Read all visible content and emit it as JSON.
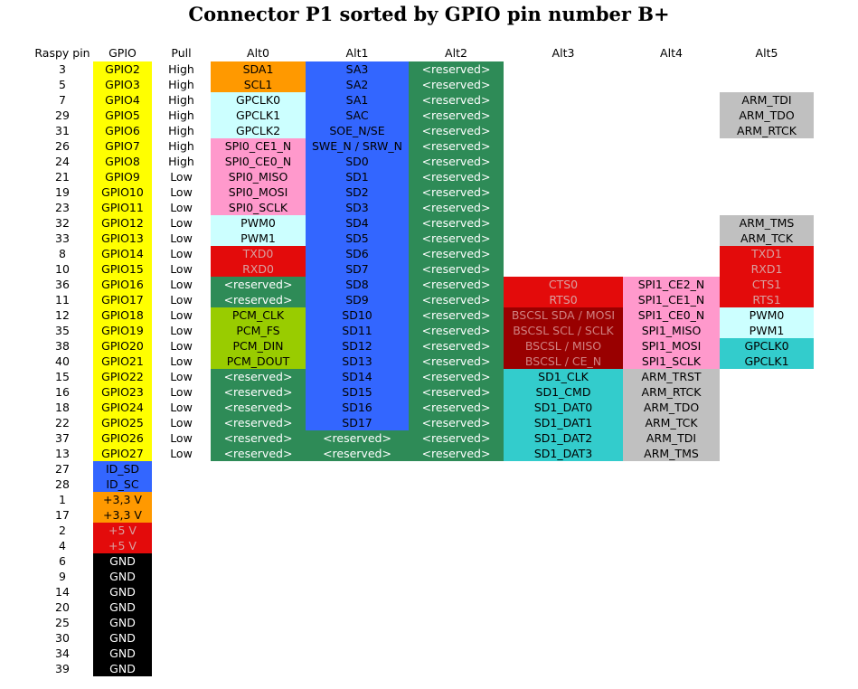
{
  "title": "Connector P1 sorted by GPIO pin number B+",
  "columns": [
    {
      "label": "Raspy pin"
    },
    {
      "label": "GPIO"
    },
    {
      "label": "Pull"
    },
    {
      "label": "Alt0"
    },
    {
      "label": "Alt1"
    },
    {
      "label": "Alt2"
    },
    {
      "label": "Alt3"
    },
    {
      "label": "Alt4"
    },
    {
      "label": "Alt5"
    }
  ],
  "palette": {
    "yellow": {
      "bg": "#FFFF00",
      "fg": "#000000"
    },
    "orange": {
      "bg": "#FF9900",
      "fg": "#000000"
    },
    "blue": {
      "bg": "#3366FF",
      "fg": "#000000"
    },
    "green": {
      "bg": "#2E8B57",
      "fg": "#FFFFFF"
    },
    "lightcyan": {
      "bg": "#CCFFFF",
      "fg": "#000000"
    },
    "pink": {
      "bg": "#FF99CC",
      "fg": "#000000"
    },
    "red": {
      "bg": "#E30B0B",
      "fg": "#D9A0A0"
    },
    "darkred": {
      "bg": "#990000",
      "fg": "#D08080"
    },
    "olive": {
      "bg": "#99CC00",
      "fg": "#000000"
    },
    "teal": {
      "bg": "#33CCCC",
      "fg": "#000000"
    },
    "gray": {
      "bg": "#C0C0C0",
      "fg": "#000000"
    },
    "black": {
      "bg": "#000000",
      "fg": "#FFFFFF"
    },
    "redbright": {
      "bg": "#E30B0B",
      "fg": "#FFFFFF"
    }
  },
  "rows": [
    {
      "pin": "3",
      "gpio": {
        "t": "GPIO2",
        "c": "yellow"
      },
      "pull": "High",
      "alt": [
        {
          "t": "SDA1",
          "c": "orange"
        },
        {
          "t": "SA3",
          "c": "blue"
        },
        {
          "t": "<reserved>",
          "c": "green"
        },
        null,
        null,
        null
      ]
    },
    {
      "pin": "5",
      "gpio": {
        "t": "GPIO3",
        "c": "yellow"
      },
      "pull": "High",
      "alt": [
        {
          "t": "SCL1",
          "c": "orange"
        },
        {
          "t": "SA2",
          "c": "blue"
        },
        {
          "t": "<reserved>",
          "c": "green"
        },
        null,
        null,
        null
      ]
    },
    {
      "pin": "7",
      "gpio": {
        "t": "GPIO4",
        "c": "yellow"
      },
      "pull": "High",
      "alt": [
        {
          "t": "GPCLK0",
          "c": "lightcyan"
        },
        {
          "t": "SA1",
          "c": "blue"
        },
        {
          "t": "<reserved>",
          "c": "green"
        },
        null,
        null,
        {
          "t": "ARM_TDI",
          "c": "gray"
        }
      ]
    },
    {
      "pin": "29",
      "gpio": {
        "t": "GPIO5",
        "c": "yellow"
      },
      "pull": "High",
      "alt": [
        {
          "t": "GPCLK1",
          "c": "lightcyan"
        },
        {
          "t": "SAC",
          "c": "blue"
        },
        {
          "t": "<reserved>",
          "c": "green"
        },
        null,
        null,
        {
          "t": "ARM_TDO",
          "c": "gray"
        }
      ]
    },
    {
      "pin": "31",
      "gpio": {
        "t": "GPIO6",
        "c": "yellow"
      },
      "pull": "High",
      "alt": [
        {
          "t": "GPCLK2",
          "c": "lightcyan"
        },
        {
          "t": "SOE_N/SE",
          "c": "blue"
        },
        {
          "t": "<reserved>",
          "c": "green"
        },
        null,
        null,
        {
          "t": "ARM_RTCK",
          "c": "gray"
        }
      ]
    },
    {
      "pin": "26",
      "gpio": {
        "t": "GPIO7",
        "c": "yellow"
      },
      "pull": "High",
      "alt": [
        {
          "t": "SPI0_CE1_N",
          "c": "pink"
        },
        {
          "t": "SWE_N / SRW_N",
          "c": "blue"
        },
        {
          "t": "<reserved>",
          "c": "green"
        },
        null,
        null,
        null
      ]
    },
    {
      "pin": "24",
      "gpio": {
        "t": "GPIO8",
        "c": "yellow"
      },
      "pull": "High",
      "alt": [
        {
          "t": "SPI0_CE0_N",
          "c": "pink"
        },
        {
          "t": "SD0",
          "c": "blue"
        },
        {
          "t": "<reserved>",
          "c": "green"
        },
        null,
        null,
        null
      ]
    },
    {
      "pin": "21",
      "gpio": {
        "t": "GPIO9",
        "c": "yellow"
      },
      "pull": "Low",
      "alt": [
        {
          "t": "SPI0_MISO",
          "c": "pink"
        },
        {
          "t": "SD1",
          "c": "blue"
        },
        {
          "t": "<reserved>",
          "c": "green"
        },
        null,
        null,
        null
      ]
    },
    {
      "pin": "19",
      "gpio": {
        "t": "GPIO10",
        "c": "yellow"
      },
      "pull": "Low",
      "alt": [
        {
          "t": "SPI0_MOSI",
          "c": "pink"
        },
        {
          "t": "SD2",
          "c": "blue"
        },
        {
          "t": "<reserved>",
          "c": "green"
        },
        null,
        null,
        null
      ]
    },
    {
      "pin": "23",
      "gpio": {
        "t": "GPIO11",
        "c": "yellow"
      },
      "pull": "Low",
      "alt": [
        {
          "t": "SPI0_SCLK",
          "c": "pink"
        },
        {
          "t": "SD3",
          "c": "blue"
        },
        {
          "t": "<reserved>",
          "c": "green"
        },
        null,
        null,
        null
      ]
    },
    {
      "pin": "32",
      "gpio": {
        "t": "GPIO12",
        "c": "yellow"
      },
      "pull": "Low",
      "alt": [
        {
          "t": "PWM0",
          "c": "lightcyan"
        },
        {
          "t": "SD4",
          "c": "blue"
        },
        {
          "t": "<reserved>",
          "c": "green"
        },
        null,
        null,
        {
          "t": "ARM_TMS",
          "c": "gray"
        }
      ]
    },
    {
      "pin": "33",
      "gpio": {
        "t": "GPIO13",
        "c": "yellow"
      },
      "pull": "Low",
      "alt": [
        {
          "t": "PWM1",
          "c": "lightcyan"
        },
        {
          "t": "SD5",
          "c": "blue"
        },
        {
          "t": "<reserved>",
          "c": "green"
        },
        null,
        null,
        {
          "t": "ARM_TCK",
          "c": "gray"
        }
      ]
    },
    {
      "pin": "8",
      "gpio": {
        "t": "GPIO14",
        "c": "yellow"
      },
      "pull": "Low",
      "alt": [
        {
          "t": "TXD0",
          "c": "red"
        },
        {
          "t": "SD6",
          "c": "blue"
        },
        {
          "t": "<reserved>",
          "c": "green"
        },
        null,
        null,
        {
          "t": "TXD1",
          "c": "red"
        }
      ]
    },
    {
      "pin": "10",
      "gpio": {
        "t": "GPIO15",
        "c": "yellow"
      },
      "pull": "Low",
      "alt": [
        {
          "t": "RXD0",
          "c": "red"
        },
        {
          "t": "SD7",
          "c": "blue"
        },
        {
          "t": "<reserved>",
          "c": "green"
        },
        null,
        null,
        {
          "t": "RXD1",
          "c": "red"
        }
      ]
    },
    {
      "pin": "36",
      "gpio": {
        "t": "GPIO16",
        "c": "yellow"
      },
      "pull": "Low",
      "alt": [
        {
          "t": "<reserved>",
          "c": "green"
        },
        {
          "t": "SD8",
          "c": "blue"
        },
        {
          "t": "<reserved>",
          "c": "green"
        },
        {
          "t": "CTS0",
          "c": "red"
        },
        {
          "t": "SPI1_CE2_N",
          "c": "pink"
        },
        {
          "t": "CTS1",
          "c": "red"
        }
      ]
    },
    {
      "pin": "11",
      "gpio": {
        "t": "GPIO17",
        "c": "yellow"
      },
      "pull": "Low",
      "alt": [
        {
          "t": "<reserved>",
          "c": "green"
        },
        {
          "t": "SD9",
          "c": "blue"
        },
        {
          "t": "<reserved>",
          "c": "green"
        },
        {
          "t": "RTS0",
          "c": "red"
        },
        {
          "t": "SPI1_CE1_N",
          "c": "pink"
        },
        {
          "t": "RTS1",
          "c": "red"
        }
      ]
    },
    {
      "pin": "12",
      "gpio": {
        "t": "GPIO18",
        "c": "yellow"
      },
      "pull": "Low",
      "alt": [
        {
          "t": "PCM_CLK",
          "c": "olive"
        },
        {
          "t": "SD10",
          "c": "blue"
        },
        {
          "t": "<reserved>",
          "c": "green"
        },
        {
          "t": "BSCSL SDA / MOSI",
          "c": "darkred"
        },
        {
          "t": "SPI1_CE0_N",
          "c": "pink"
        },
        {
          "t": "PWM0",
          "c": "lightcyan"
        }
      ]
    },
    {
      "pin": "35",
      "gpio": {
        "t": "GPIO19",
        "c": "yellow"
      },
      "pull": "Low",
      "alt": [
        {
          "t": "PCM_FS",
          "c": "olive"
        },
        {
          "t": "SD11",
          "c": "blue"
        },
        {
          "t": "<reserved>",
          "c": "green"
        },
        {
          "t": "BSCSL SCL / SCLK",
          "c": "darkred"
        },
        {
          "t": "SPI1_MISO",
          "c": "pink"
        },
        {
          "t": "PWM1",
          "c": "lightcyan"
        }
      ]
    },
    {
      "pin": "38",
      "gpio": {
        "t": "GPIO20",
        "c": "yellow"
      },
      "pull": "Low",
      "alt": [
        {
          "t": "PCM_DIN",
          "c": "olive"
        },
        {
          "t": "SD12",
          "c": "blue"
        },
        {
          "t": "<reserved>",
          "c": "green"
        },
        {
          "t": "BSCSL / MISO",
          "c": "darkred"
        },
        {
          "t": "SPI1_MOSI",
          "c": "pink"
        },
        {
          "t": "GPCLK0",
          "c": "teal"
        }
      ]
    },
    {
      "pin": "40",
      "gpio": {
        "t": "GPIO21",
        "c": "yellow"
      },
      "pull": "Low",
      "alt": [
        {
          "t": "PCM_DOUT",
          "c": "olive"
        },
        {
          "t": "SD13",
          "c": "blue"
        },
        {
          "t": "<reserved>",
          "c": "green"
        },
        {
          "t": "BSCSL / CE_N",
          "c": "darkred"
        },
        {
          "t": "SPI1_SCLK",
          "c": "pink"
        },
        {
          "t": "GPCLK1",
          "c": "teal"
        }
      ]
    },
    {
      "pin": "15",
      "gpio": {
        "t": "GPIO22",
        "c": "yellow"
      },
      "pull": "Low",
      "alt": [
        {
          "t": "<reserved>",
          "c": "green"
        },
        {
          "t": "SD14",
          "c": "blue"
        },
        {
          "t": "<reserved>",
          "c": "green"
        },
        {
          "t": "SD1_CLK",
          "c": "teal"
        },
        {
          "t": "ARM_TRST",
          "c": "gray"
        },
        null
      ]
    },
    {
      "pin": "16",
      "gpio": {
        "t": "GPIO23",
        "c": "yellow"
      },
      "pull": "Low",
      "alt": [
        {
          "t": "<reserved>",
          "c": "green"
        },
        {
          "t": "SD15",
          "c": "blue"
        },
        {
          "t": "<reserved>",
          "c": "green"
        },
        {
          "t": "SD1_CMD",
          "c": "teal"
        },
        {
          "t": "ARM_RTCK",
          "c": "gray"
        },
        null
      ]
    },
    {
      "pin": "18",
      "gpio": {
        "t": "GPIO24",
        "c": "yellow"
      },
      "pull": "Low",
      "alt": [
        {
          "t": "<reserved>",
          "c": "green"
        },
        {
          "t": "SD16",
          "c": "blue"
        },
        {
          "t": "<reserved>",
          "c": "green"
        },
        {
          "t": "SD1_DAT0",
          "c": "teal"
        },
        {
          "t": "ARM_TDO",
          "c": "gray"
        },
        null
      ]
    },
    {
      "pin": "22",
      "gpio": {
        "t": "GPIO25",
        "c": "yellow"
      },
      "pull": "Low",
      "alt": [
        {
          "t": "<reserved>",
          "c": "green"
        },
        {
          "t": "SD17",
          "c": "blue"
        },
        {
          "t": "<reserved>",
          "c": "green"
        },
        {
          "t": "SD1_DAT1",
          "c": "teal"
        },
        {
          "t": "ARM_TCK",
          "c": "gray"
        },
        null
      ]
    },
    {
      "pin": "37",
      "gpio": {
        "t": "GPIO26",
        "c": "yellow"
      },
      "pull": "Low",
      "alt": [
        {
          "t": "<reserved>",
          "c": "green"
        },
        {
          "t": "<reserved>",
          "c": "green"
        },
        {
          "t": "<reserved>",
          "c": "green"
        },
        {
          "t": "SD1_DAT2",
          "c": "teal"
        },
        {
          "t": "ARM_TDI",
          "c": "gray"
        },
        null
      ]
    },
    {
      "pin": "13",
      "gpio": {
        "t": "GPIO27",
        "c": "yellow"
      },
      "pull": "Low",
      "alt": [
        {
          "t": "<reserved>",
          "c": "green"
        },
        {
          "t": "<reserved>",
          "c": "green"
        },
        {
          "t": "<reserved>",
          "c": "green"
        },
        {
          "t": "SD1_DAT3",
          "c": "teal"
        },
        {
          "t": "ARM_TMS",
          "c": "gray"
        },
        null
      ]
    },
    {
      "pin": "27",
      "gpio": {
        "t": "ID_SD",
        "c": "blue"
      },
      "pull": "",
      "alt": [
        null,
        null,
        null,
        null,
        null,
        null
      ]
    },
    {
      "pin": "28",
      "gpio": {
        "t": "ID_SC",
        "c": "blue"
      },
      "pull": "",
      "alt": [
        null,
        null,
        null,
        null,
        null,
        null
      ]
    },
    {
      "pin": "1",
      "gpio": {
        "t": "+3,3 V",
        "c": "orange"
      },
      "pull": "",
      "alt": [
        null,
        null,
        null,
        null,
        null,
        null
      ]
    },
    {
      "pin": "17",
      "gpio": {
        "t": "+3,3 V",
        "c": "orange"
      },
      "pull": "",
      "alt": [
        null,
        null,
        null,
        null,
        null,
        null
      ]
    },
    {
      "pin": "2",
      "gpio": {
        "t": "+5 V",
        "c": "red"
      },
      "pull": "",
      "alt": [
        null,
        null,
        null,
        null,
        null,
        null
      ]
    },
    {
      "pin": "4",
      "gpio": {
        "t": "+5 V",
        "c": "red"
      },
      "pull": "",
      "alt": [
        null,
        null,
        null,
        null,
        null,
        null
      ]
    },
    {
      "pin": "6",
      "gpio": {
        "t": "GND",
        "c": "black"
      },
      "pull": "",
      "alt": [
        null,
        null,
        null,
        null,
        null,
        null
      ]
    },
    {
      "pin": "9",
      "gpio": {
        "t": "GND",
        "c": "black"
      },
      "pull": "",
      "alt": [
        null,
        null,
        null,
        null,
        null,
        null
      ]
    },
    {
      "pin": "14",
      "gpio": {
        "t": "GND",
        "c": "black"
      },
      "pull": "",
      "alt": [
        null,
        null,
        null,
        null,
        null,
        null
      ]
    },
    {
      "pin": "20",
      "gpio": {
        "t": "GND",
        "c": "black"
      },
      "pull": "",
      "alt": [
        null,
        null,
        null,
        null,
        null,
        null
      ]
    },
    {
      "pin": "25",
      "gpio": {
        "t": "GND",
        "c": "black"
      },
      "pull": "",
      "alt": [
        null,
        null,
        null,
        null,
        null,
        null
      ]
    },
    {
      "pin": "30",
      "gpio": {
        "t": "GND",
        "c": "black"
      },
      "pull": "",
      "alt": [
        null,
        null,
        null,
        null,
        null,
        null
      ]
    },
    {
      "pin": "34",
      "gpio": {
        "t": "GND",
        "c": "black"
      },
      "pull": "",
      "alt": [
        null,
        null,
        null,
        null,
        null,
        null
      ]
    },
    {
      "pin": "39",
      "gpio": {
        "t": "GND",
        "c": "black"
      },
      "pull": "",
      "alt": [
        null,
        null,
        null,
        null,
        null,
        null
      ]
    }
  ]
}
